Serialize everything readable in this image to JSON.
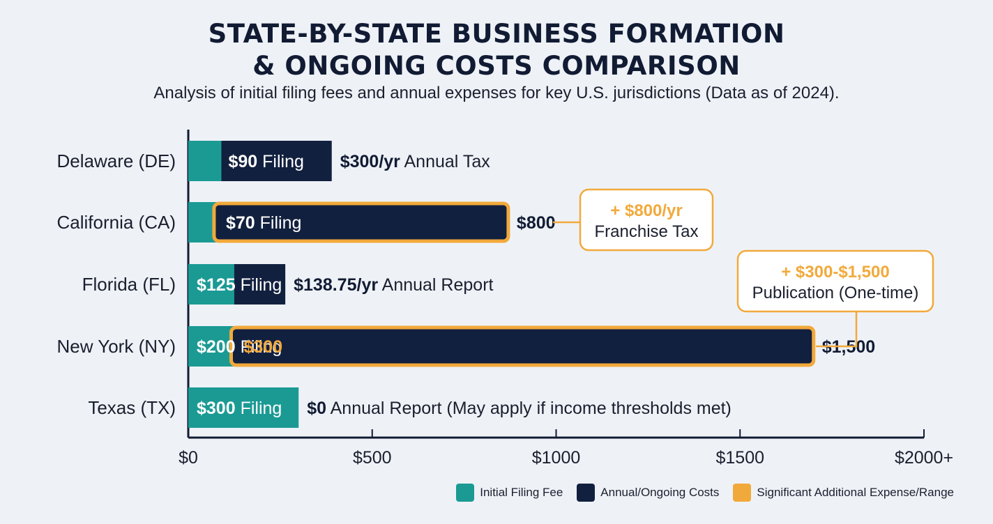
{
  "chart_data": {
    "type": "bar",
    "title_lines": [
      "STATE-BY-STATE BUSINESS FORMATION",
      "& ONGOING COSTS COMPARISON"
    ],
    "subtitle": "Analysis of initial filing fees and annual expenses for key U.S. jurisdictions (Data as of 2024).",
    "xlabel": "",
    "ylabel": "",
    "xlim": [
      0,
      2000
    ],
    "x_ticks": [
      {
        "value": 0,
        "label": "$0"
      },
      {
        "value": 500,
        "label": "$500"
      },
      {
        "value": 1000,
        "label": "$1000"
      },
      {
        "value": 1500,
        "label": "$1500"
      },
      {
        "value": 2000,
        "label": "$2000+"
      }
    ],
    "grid": false,
    "legend_position": "bottom-right",
    "colors": {
      "filing": "#1b9a94",
      "annual": "#12203f",
      "significant": "#f2a93b",
      "text": "#111b33"
    },
    "legend": [
      {
        "key": "filing",
        "label": "Initial Filing Fee"
      },
      {
        "key": "annual",
        "label": "Annual/Ongoing Costs"
      },
      {
        "key": "significant",
        "label": "Significant Additional Expense/Range"
      }
    ],
    "categories": [
      "Delaware (DE)",
      "California (CA)",
      "Florida (FL)",
      "New York (NY)",
      "Texas (TX)"
    ],
    "series": [
      {
        "name": "Initial Filing Fee",
        "key": "filing",
        "values": [
          90,
          70,
          125,
          200,
          300
        ]
      },
      {
        "name": "Annual/Ongoing Costs",
        "key": "annual",
        "values": [
          300,
          800,
          138.75,
          1500,
          0
        ]
      }
    ],
    "rows": [
      {
        "state": "Delaware (DE)",
        "filing": 90,
        "annual": 300,
        "bar_text": {
          "bold": "$90",
          "rest": " Filing",
          "bold_color": "#ffffff"
        },
        "bar_text2": null,
        "end_label": {
          "bold": "$300/yr",
          "rest": " Annual Tax"
        },
        "highlight": false,
        "callout_index": null
      },
      {
        "state": "California (CA)",
        "filing": 70,
        "annual": 800,
        "bar_text": {
          "bold": "$70",
          "rest": " Filing",
          "bold_color": "#ffffff"
        },
        "bar_text2": null,
        "end_label": {
          "bold": "$800",
          "rest": ""
        },
        "highlight": true,
        "callout_index": 0
      },
      {
        "state": "Florida (FL)",
        "filing": 125,
        "annual": 138.75,
        "bar_text": {
          "bold": "$125",
          "rest": " Filing",
          "bold_color": "#ffffff"
        },
        "bar_text2": null,
        "end_label": {
          "bold": "$138.75/yr",
          "rest": " Annual Report"
        },
        "highlight": false,
        "callout_index": null
      },
      {
        "state": "New York (NY)",
        "filing": 200,
        "annual": 1500,
        "bar_text": {
          "bold": "$200",
          "rest": " Filing",
          "bold_color": "#ffffff"
        },
        "bar_text2": {
          "bold": "$300",
          "bold_color": "#f2a93b"
        },
        "end_label": {
          "bold": "$1,500",
          "rest": ""
        },
        "highlight": true,
        "callout_index": 1
      },
      {
        "state": "Texas (TX)",
        "filing": 300,
        "annual": 0,
        "bar_text": {
          "bold": "$300",
          "rest": " Filing",
          "bold_color": "#ffffff"
        },
        "bar_text2": null,
        "end_label": {
          "bold": "$0",
          "rest": " Annual Report (May apply if income thresholds met)"
        },
        "highlight": false,
        "callout_index": null
      }
    ],
    "callouts": [
      {
        "line1": "+ $800/yr",
        "line2": "Franchise Tax"
      },
      {
        "line1": "+ $300-$1,500",
        "line2": "Publication (One-time)"
      }
    ]
  }
}
